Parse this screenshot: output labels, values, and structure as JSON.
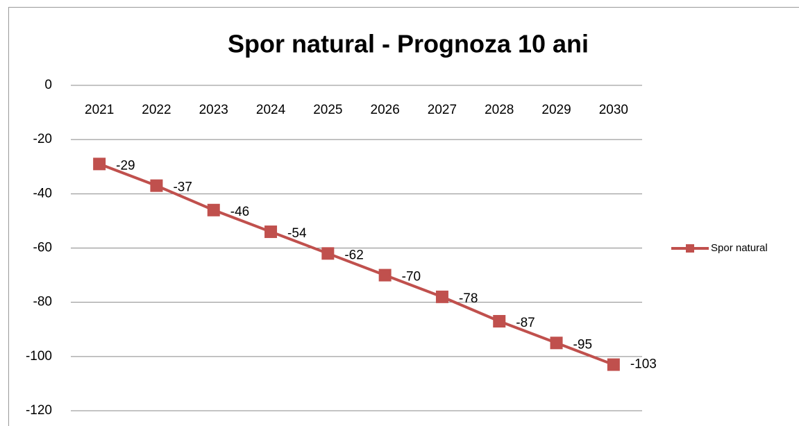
{
  "chart_data": {
    "type": "line",
    "title": "Spor natural - Prognoza 10 ani",
    "categories": [
      "2021",
      "2022",
      "2023",
      "2024",
      "2025",
      "2026",
      "2027",
      "2028",
      "2029",
      "2030"
    ],
    "series": [
      {
        "name": "Spor natural",
        "color": "#c0504d",
        "values": [
          -29,
          -37,
          -46,
          -54,
          -62,
          -70,
          -78,
          -87,
          -95,
          -103
        ]
      }
    ],
    "ylim": [
      -120,
      0
    ],
    "yticks": [
      -120,
      -100,
      -80,
      -60,
      -40,
      -20,
      0
    ],
    "grid": true,
    "legend": "right"
  }
}
